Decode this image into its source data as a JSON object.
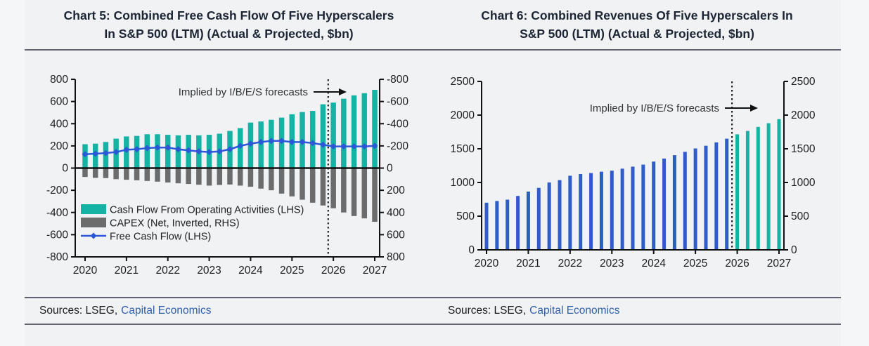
{
  "charts": [
    {
      "title_line1": "Chart 5: Combined Free Cash Flow Of Five Hyperscalers",
      "title_line2": "In S&P 500 (LTM) (Actual & Projected, $bn)",
      "sources_prefix": "Sources: LSEG,",
      "sources_link": "Capital Economics"
    },
    {
      "title_line1": "Chart 6: Combined Revenues Of Five Hyperscalers In",
      "title_line2": "S&P 500 (LTM) (Actual & Projected, $bn)",
      "sources_prefix": "Sources: LSEG,",
      "sources_link": "Capital Economics"
    }
  ],
  "colors": {
    "teal": "#14b3a4",
    "grey_bar": "#6c6c6c",
    "fcf_line_blue": "#2b57d8",
    "revenue_bar_blue": "#2f5cc9",
    "axis_black": "#111111",
    "title_navy": "#1d2534",
    "rule_grey": "#63636f",
    "link_blue": "#2e5faa"
  },
  "chart_data": [
    {
      "type": "bar+line",
      "title": "Chart 5: Combined Free Cash Flow Of Five Hyperscalers In S&P 500 (LTM) (Actual & Projected, $bn)",
      "annotation": "Implied by I/B/E/S forecasts",
      "x_quarters": [
        "2020Q1",
        "2020Q2",
        "2020Q3",
        "2020Q4",
        "2021Q1",
        "2021Q2",
        "2021Q3",
        "2021Q4",
        "2022Q1",
        "2022Q2",
        "2022Q3",
        "2022Q4",
        "2023Q1",
        "2023Q2",
        "2023Q3",
        "2023Q4",
        "2024Q1",
        "2024Q2",
        "2024Q3",
        "2024Q4",
        "2025Q1",
        "2025Q2",
        "2025Q3",
        "2025Q4",
        "2026Q1",
        "2026Q2",
        "2026Q3",
        "2026Q4",
        "2027Q1"
      ],
      "x_tick_labels": [
        "2020",
        "2021",
        "2022",
        "2023",
        "2024",
        "2025",
        "2026",
        "2027"
      ],
      "ylim": [
        -800,
        800
      ],
      "y_ticks_left": [
        "800",
        "600",
        "400",
        "200",
        "0",
        "-200",
        "-400",
        "-600",
        "-800"
      ],
      "y_ticks_right": [
        "-800",
        "-600",
        "-400",
        "-200",
        "0",
        "200",
        "400",
        "600",
        "800"
      ],
      "right_axis_inverted": true,
      "forecast_divider_after_index": 23,
      "zero_line": true,
      "legend_position": "inside-bottom-left",
      "series": [
        {
          "name": "Cash Flow From Operating Activities (LHS)",
          "type": "bar",
          "color": "#14b3a4",
          "values": [
            215,
            220,
            235,
            265,
            285,
            290,
            305,
            305,
            300,
            295,
            300,
            295,
            300,
            310,
            335,
            360,
            410,
            420,
            435,
            455,
            485,
            505,
            515,
            575,
            590,
            625,
            655,
            675,
            705
          ]
        },
        {
          "name": "CAPEX (Net, Inverted, RHS)",
          "type": "bar-inverted",
          "color": "#6c6c6c",
          "values": [
            80,
            88,
            90,
            100,
            105,
            110,
            116,
            122,
            130,
            137,
            143,
            150,
            158,
            152,
            148,
            158,
            168,
            185,
            200,
            230,
            255,
            285,
            312,
            337,
            362,
            400,
            432,
            453,
            484
          ]
        },
        {
          "name": "Free Cash Flow (LHS)",
          "type": "line",
          "marker": "diamond",
          "color": "#2b57d8",
          "values": [
            125,
            130,
            135,
            145,
            165,
            170,
            180,
            185,
            185,
            170,
            160,
            150,
            145,
            150,
            170,
            200,
            220,
            235,
            245,
            245,
            235,
            235,
            225,
            210,
            195,
            195,
            195,
            195,
            200
          ]
        }
      ]
    },
    {
      "type": "bar",
      "title": "Chart 6: Combined Revenues Of Five Hyperscalers In S&P 500 (LTM) (Actual & Projected, $bn)",
      "annotation": "Implied by I/B/E/S forecasts",
      "x_quarters": [
        "2020Q1",
        "2020Q2",
        "2020Q3",
        "2020Q4",
        "2021Q1",
        "2021Q2",
        "2021Q3",
        "2021Q4",
        "2022Q1",
        "2022Q2",
        "2022Q3",
        "2022Q4",
        "2023Q1",
        "2023Q2",
        "2023Q3",
        "2023Q4",
        "2024Q1",
        "2024Q2",
        "2024Q3",
        "2024Q4",
        "2025Q1",
        "2025Q2",
        "2025Q3",
        "2025Q4",
        "2026Q1",
        "2026Q2",
        "2026Q3",
        "2026Q4",
        "2027Q1"
      ],
      "x_tick_labels": [
        "2020",
        "2021",
        "2022",
        "2023",
        "2024",
        "2025",
        "2026",
        "2027"
      ],
      "ylim": [
        0,
        2500
      ],
      "y_ticks_left": [
        "2500",
        "2000",
        "1500",
        "1000",
        "500",
        "0"
      ],
      "y_ticks_right": [
        "2500",
        "2000",
        "1500",
        "1000",
        "500",
        "0"
      ],
      "forecast_divider_after_index": 23,
      "series": [
        {
          "name": "Combined revenues",
          "type": "bar",
          "split_index": 24,
          "actual_color": "#2f5cc9",
          "forecast_color": "#14b3a4",
          "values": [
            700,
            725,
            745,
            800,
            865,
            920,
            1000,
            1035,
            1100,
            1125,
            1140,
            1160,
            1175,
            1205,
            1235,
            1265,
            1310,
            1355,
            1405,
            1455,
            1505,
            1545,
            1595,
            1650,
            1715,
            1765,
            1825,
            1880,
            1940
          ]
        }
      ]
    }
  ]
}
